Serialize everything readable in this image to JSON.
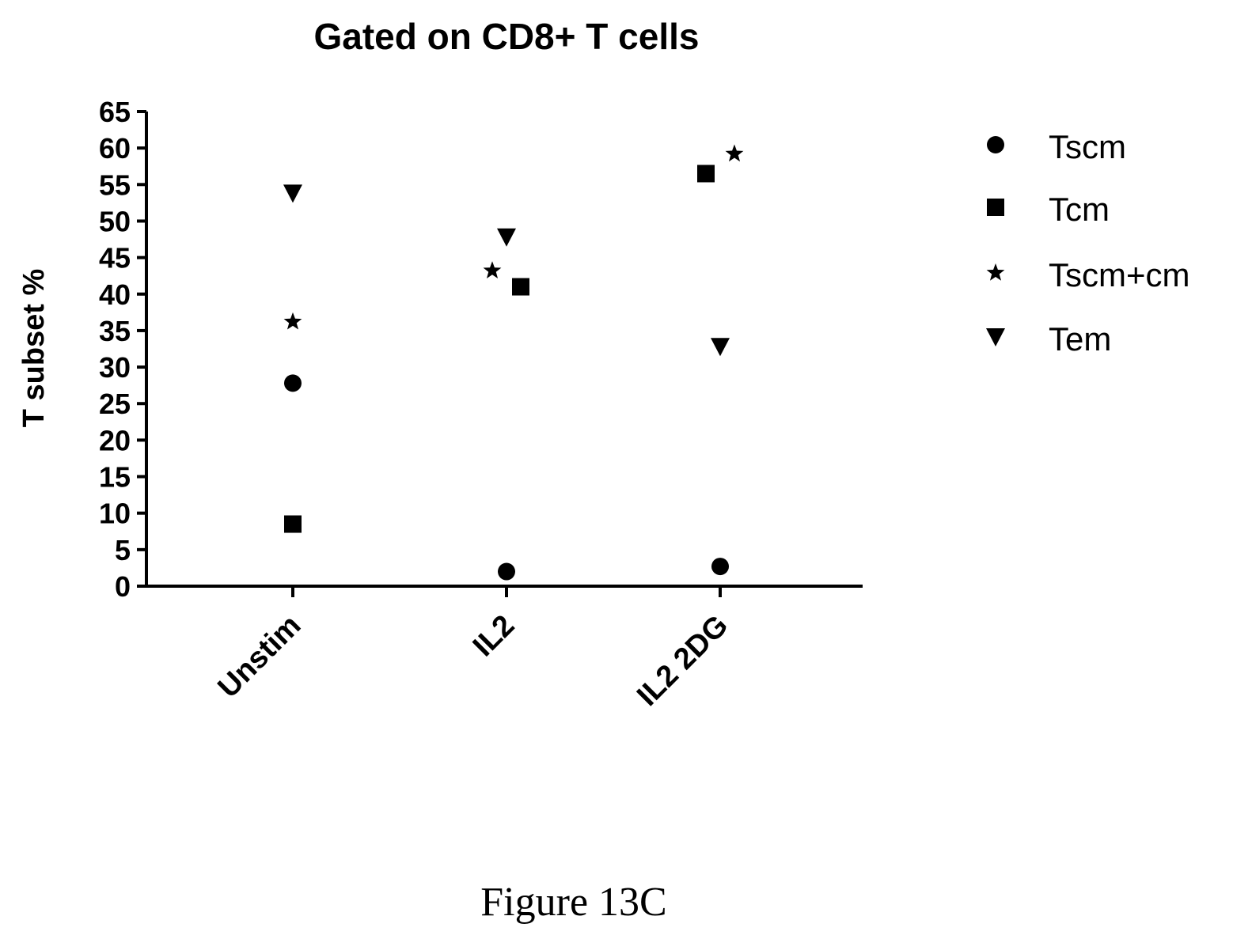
{
  "chart_data": {
    "type": "scatter",
    "title": "Gated on CD8+ T cells",
    "ylabel": "T subset %",
    "xlabel": "",
    "categories": [
      "Unstim",
      "IL2",
      "IL2 2DG"
    ],
    "ylim": [
      0,
      65
    ],
    "yticks": [
      "0",
      "5",
      "10",
      "15",
      "20",
      "25",
      "30",
      "35",
      "40",
      "45",
      "50",
      "55",
      "60",
      "65"
    ],
    "legend_position": "right",
    "grid": false,
    "series": [
      {
        "name": "Tscm",
        "marker": "circle",
        "values": [
          27.8,
          2.0,
          2.7
        ]
      },
      {
        "name": "Tcm",
        "marker": "square",
        "values": [
          8.5,
          41.0,
          56.5
        ]
      },
      {
        "name": "Tscm+cm",
        "marker": "star",
        "values": [
          36.2,
          43.2,
          59.2
        ]
      },
      {
        "name": "Tem",
        "marker": "triangle-down",
        "values": [
          53.8,
          47.8,
          32.8
        ]
      }
    ]
  },
  "caption": "Figure 13C"
}
